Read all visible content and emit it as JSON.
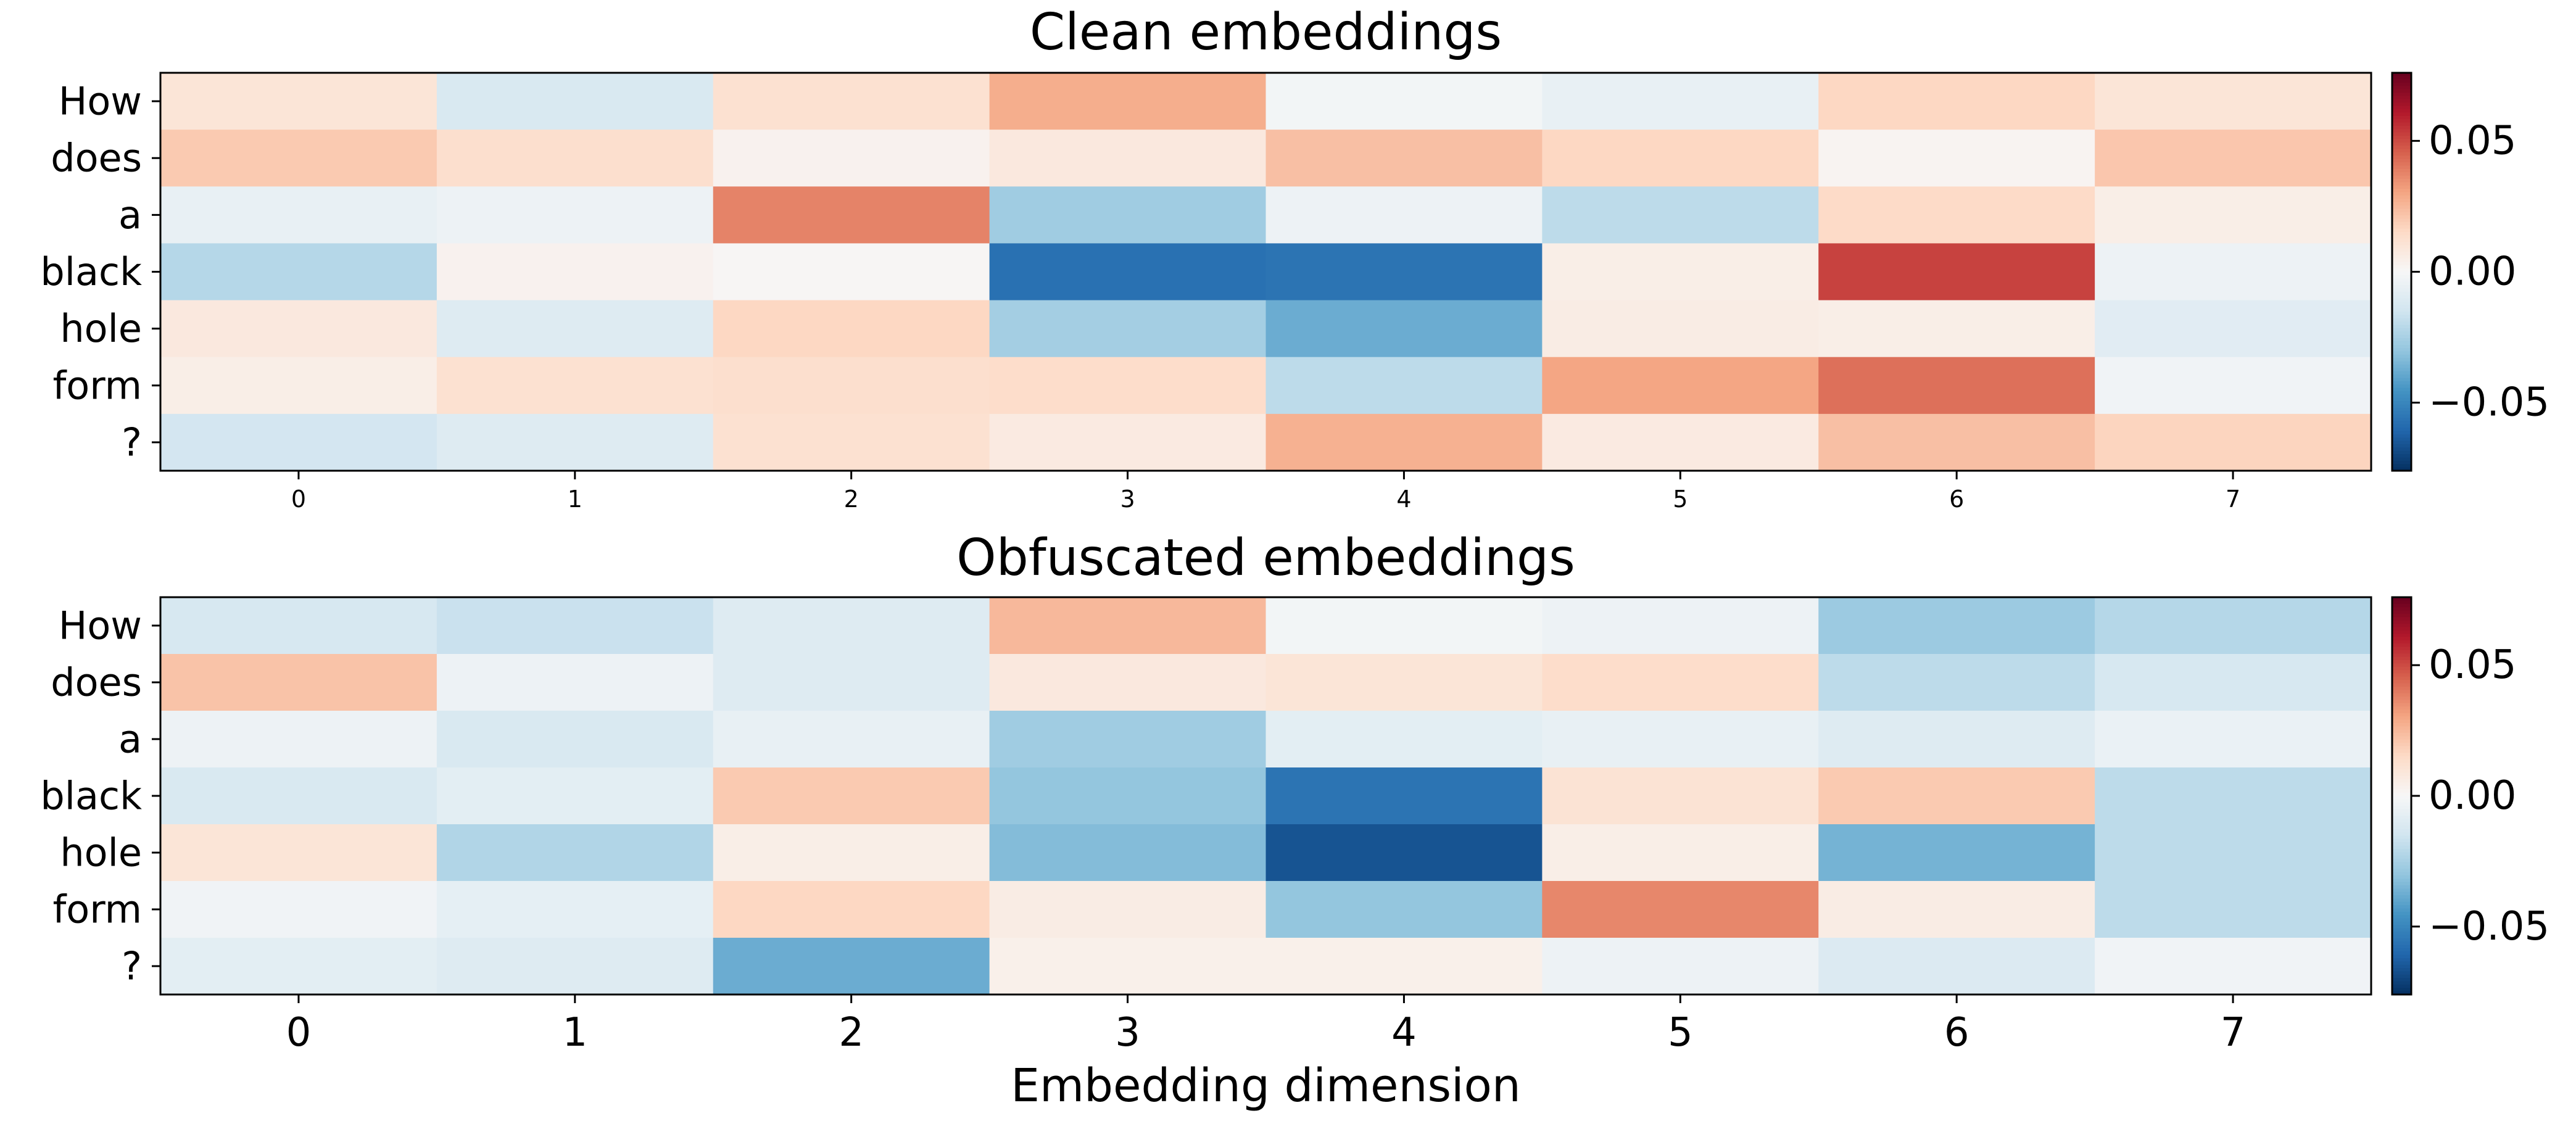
{
  "chart_data": [
    {
      "type": "heatmap",
      "title": "Clean embeddings",
      "xlabel": "",
      "ylabel": "",
      "rows": [
        "How",
        "does",
        "a",
        "black",
        "hole",
        "form",
        "?"
      ],
      "columns": [
        "0",
        "1",
        "2",
        "3",
        "4",
        "5",
        "6",
        "7"
      ],
      "values": [
        [
          0.01,
          -0.012,
          0.012,
          0.028,
          -0.002,
          -0.006,
          0.016,
          0.01
        ],
        [
          0.02,
          0.013,
          0.003,
          0.008,
          0.023,
          0.016,
          0.002,
          0.021
        ],
        [
          -0.006,
          -0.004,
          0.038,
          -0.027,
          -0.004,
          -0.02,
          0.015,
          0.005
        ],
        [
          -0.022,
          0.003,
          0.001,
          -0.057,
          -0.056,
          0.005,
          0.052,
          -0.004
        ],
        [
          0.008,
          -0.01,
          0.016,
          -0.026,
          -0.038,
          0.006,
          0.005,
          -0.009
        ],
        [
          0.005,
          0.012,
          0.013,
          0.014,
          -0.02,
          0.03,
          0.042,
          -0.003
        ],
        [
          -0.014,
          -0.01,
          0.012,
          0.007,
          0.027,
          0.007,
          0.023,
          0.017
        ]
      ],
      "colorbar": {
        "colormap": "RdBu_r",
        "range": [
          -0.076,
          0.076
        ],
        "ticks": [
          0.05,
          0.0,
          -0.05
        ],
        "tick_labels": [
          "0.05",
          "0.00",
          "−0.05"
        ]
      },
      "xtick_style": "small"
    },
    {
      "type": "heatmap",
      "title": "Obfuscated embeddings",
      "xlabel": "Embedding dimension",
      "ylabel": "",
      "rows": [
        "How",
        "does",
        "a",
        "black",
        "hole",
        "form",
        "?"
      ],
      "columns": [
        "0",
        "1",
        "2",
        "3",
        "4",
        "5",
        "6",
        "7"
      ],
      "values": [
        [
          -0.013,
          -0.017,
          -0.01,
          0.025,
          -0.002,
          -0.004,
          -0.028,
          -0.022
        ],
        [
          0.022,
          -0.004,
          -0.01,
          0.008,
          0.01,
          0.014,
          -0.02,
          -0.013
        ],
        [
          -0.004,
          -0.012,
          -0.006,
          -0.027,
          -0.008,
          -0.006,
          -0.01,
          -0.005
        ],
        [
          -0.012,
          -0.008,
          0.02,
          -0.03,
          -0.056,
          0.011,
          0.02,
          -0.02
        ],
        [
          0.01,
          -0.023,
          0.005,
          -0.033,
          -0.066,
          0.005,
          -0.036,
          -0.02
        ],
        [
          -0.003,
          -0.007,
          0.016,
          0.006,
          -0.03,
          0.037,
          0.006,
          -0.02
        ],
        [
          -0.008,
          -0.01,
          -0.038,
          0.004,
          0.004,
          -0.004,
          -0.011,
          -0.003
        ]
      ],
      "colorbar": {
        "colormap": "RdBu_r",
        "range": [
          -0.076,
          0.076
        ],
        "ticks": [
          0.05,
          0.0,
          -0.05
        ],
        "tick_labels": [
          "0.05",
          "0.00",
          "−0.05"
        ]
      },
      "xtick_style": "large"
    }
  ]
}
